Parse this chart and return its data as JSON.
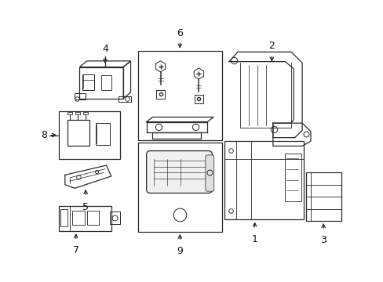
{
  "bg_color": "#ffffff",
  "line_color": "#2a2a2a",
  "label_color": "#111111",
  "figsize": [
    4.89,
    3.6
  ],
  "dpi": 100
}
